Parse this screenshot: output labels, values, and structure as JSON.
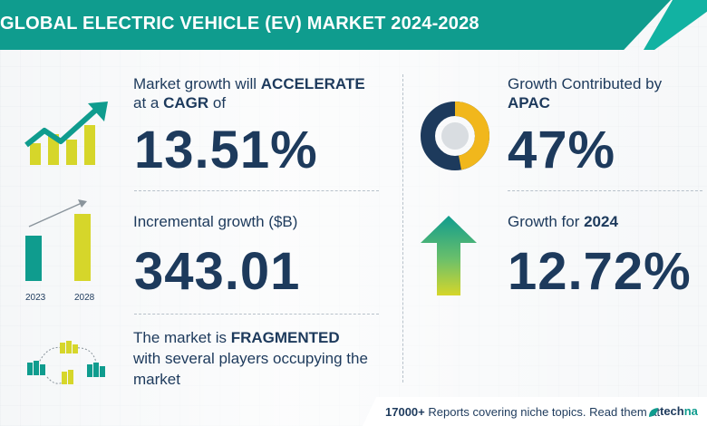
{
  "banner": {
    "title": "GLOBAL ELECTRIC VEHICLE (EV) MARKET 2024-2028"
  },
  "cagr": {
    "line1_prefix": "Market growth will ",
    "line1_bold": "ACCELERATE",
    "line2_prefix": "at a ",
    "line2_bold": "CAGR",
    "line2_suffix": " of",
    "value": "13.51%"
  },
  "incremental": {
    "label": "Incremental growth ($B)",
    "value": "343.01",
    "bar_year_1": "2023",
    "bar_year_2": "2028"
  },
  "fragmented": {
    "line1_prefix": "The market is ",
    "line1_bold": "FRAGMENTED",
    "line2": "with several players occupying the",
    "line3": "market"
  },
  "region": {
    "line1": "Growth Contributed by",
    "line2_bold": "APAC",
    "value": "47%",
    "share": 0.47
  },
  "yoy": {
    "label_prefix": "Growth for ",
    "label_bold": "2024",
    "value": "12.72%"
  },
  "footer": {
    "count": "17000+",
    "text": " Reports covering niche topics. Read them at",
    "brand_a": "tech",
    "brand_b": "na"
  },
  "colors": {
    "teal": "#0f9c8e",
    "navy": "#1d3a5c",
    "yellow": "#d6d62a",
    "gold": "#f1b71c"
  }
}
